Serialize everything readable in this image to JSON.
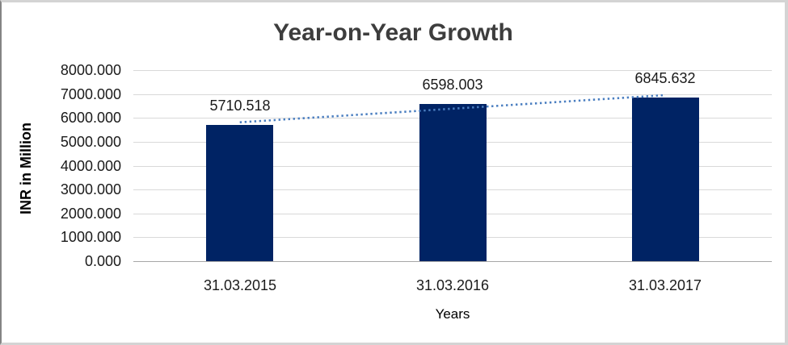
{
  "chart_data": {
    "type": "bar",
    "title": "Year-on-Year Growth",
    "xlabel": "Years",
    "ylabel": "INR in Million",
    "categories": [
      "31.03.2015",
      "31.03.2016",
      "31.03.2017"
    ],
    "values": [
      5710.518,
      6598.003,
      6845.632
    ],
    "data_labels": [
      "5710.518",
      "6598.003",
      "6845.632"
    ],
    "ylim": [
      0,
      8000
    ],
    "ytick_step": 1000,
    "ytick_labels": [
      "8000.000",
      "7000.000",
      "6000.000",
      "5000.000",
      "4000.000",
      "3000.000",
      "2000.000",
      "1000.000",
      "0.000"
    ],
    "grid": true,
    "legend": false,
    "trendline": {
      "type": "linear",
      "style": "dotted"
    },
    "colors": {
      "bar": "#002364",
      "trendline": "#4a7ec0",
      "gridline": "#d9d9d9",
      "axis_line": "#a6a6a6",
      "title_text": "#3d3d3d",
      "label_text": "#1a1a1a"
    }
  }
}
